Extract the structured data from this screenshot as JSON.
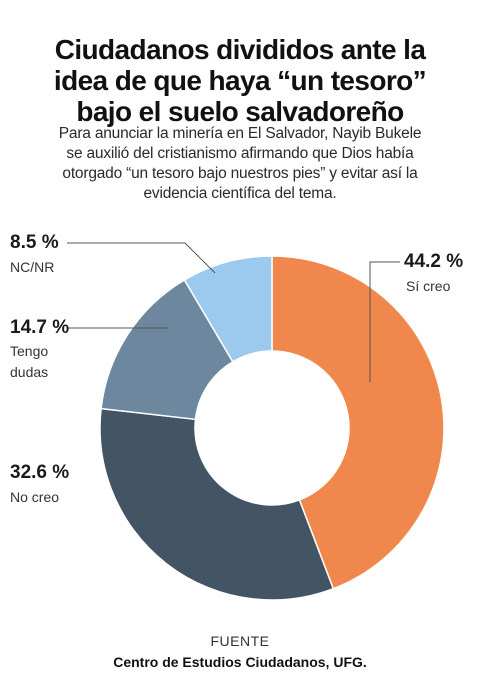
{
  "title_lines": [
    "Ciudadanos divididos ante la",
    "idea de que haya “un tesoro”",
    "bajo el suelo salvadoreño"
  ],
  "subtitle_lines": [
    "Para anunciar la minería en El Salvador, Nayib Bukele",
    "se auxilió del cristianismo afirmando que Dios había",
    "otorgado “un tesoro bajo nuestros pies” y evitar así la",
    "evidencia científica del tema."
  ],
  "source": {
    "label": "FUENTE",
    "text": "Centro de Estudios Ciudadanos, UFG."
  },
  "chart_data": {
    "type": "pie",
    "variant": "donut",
    "start": "top, clockwise",
    "slices": [
      {
        "label": "Sí creo",
        "value": 44.2,
        "value_label": "44.2 %",
        "color": "#f0874c"
      },
      {
        "label": "No creo",
        "value": 32.6,
        "value_label": "32.6 %",
        "color": "#435565"
      },
      {
        "label": "Tengo dudas",
        "value": 14.7,
        "value_label": "14.7 %",
        "color": "#6c879e"
      },
      {
        "label": "NC/NR",
        "value": 8.5,
        "value_label": "8.5 %",
        "color": "#9cc9ee"
      }
    ]
  }
}
